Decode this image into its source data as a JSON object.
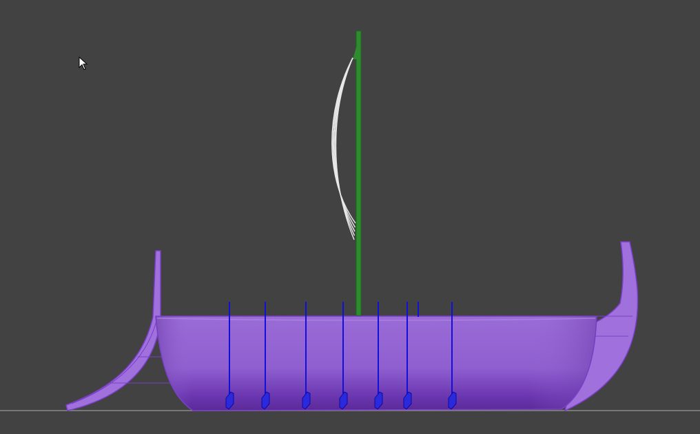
{
  "viewport": {
    "background": "#424242",
    "ground_color": "#8a8a8a"
  },
  "scene": {
    "model": "longship-with-oars",
    "hull": {
      "fill": "#9A6CD6",
      "edge": "#7A3FC8",
      "shade_dark": "#5A2A98"
    },
    "mast": {
      "color": "#2E8B2E"
    },
    "sail": {
      "color": "#E8E8E8",
      "line_count": 5
    },
    "oars": {
      "color": "#1010D8",
      "count": 8
    }
  },
  "cursor": {
    "icon": "mouse-pointer-icon"
  }
}
